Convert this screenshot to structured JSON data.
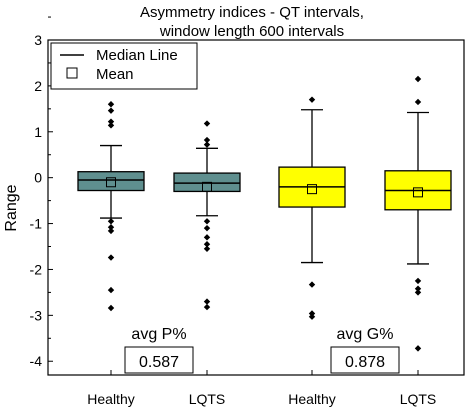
{
  "chart_data": {
    "type": "box",
    "title": "Asymmetry indices - QT intervals,",
    "subtitle": "window length 600 intervals",
    "ylabel": "Range",
    "xlabel": "",
    "ylim": [
      -4.3,
      3
    ],
    "yticks": [
      -4,
      -3,
      -2,
      -1,
      0,
      1,
      2,
      3
    ],
    "grid": false,
    "legend": {
      "placement": "top-left",
      "median_label": "Median Line",
      "mean_label": "Mean"
    },
    "categories": [
      "Healthy",
      "LQTS",
      "Healthy",
      "LQTS"
    ],
    "boxes": [
      {
        "category": "Healthy",
        "color": "#5f8f8f",
        "q1": -0.28,
        "median": -0.05,
        "q3": 0.13,
        "whisker_low": -0.88,
        "whisker_high": 0.7,
        "mean": -0.1,
        "outliers": [
          1.6,
          1.46,
          1.22,
          1.14,
          -0.95,
          -1.08,
          -1.16,
          -1.74,
          -2.45,
          -2.84
        ]
      },
      {
        "category": "LQTS",
        "color": "#5f8f8f",
        "q1": -0.3,
        "median": -0.12,
        "q3": 0.1,
        "whisker_low": -0.83,
        "whisker_high": 0.64,
        "mean": -0.2,
        "outliers": [
          1.18,
          0.82,
          0.72,
          -0.95,
          -1.1,
          -1.3,
          -1.45,
          -1.55,
          -2.7,
          -2.82
        ]
      },
      {
        "category": "Healthy",
        "color": "#ffff00",
        "q1": -0.64,
        "median": -0.2,
        "q3": 0.23,
        "whisker_low": -1.85,
        "whisker_high": 1.48,
        "mean": -0.25,
        "outliers": [
          1.7,
          -2.33,
          -2.96,
          -3.03
        ]
      },
      {
        "category": "LQTS",
        "color": "#ffff00",
        "q1": -0.7,
        "median": -0.28,
        "q3": 0.15,
        "whisker_low": -1.88,
        "whisker_high": 1.42,
        "mean": -0.32,
        "outliers": [
          2.15,
          1.65,
          -2.25,
          -2.42,
          -2.5,
          -3.72
        ]
      }
    ],
    "annotations": [
      {
        "label": "avg P%",
        "value": "0.587",
        "between": [
          0,
          1
        ]
      },
      {
        "label": "avg G%",
        "value": "0.878",
        "between": [
          2,
          3
        ]
      }
    ]
  }
}
